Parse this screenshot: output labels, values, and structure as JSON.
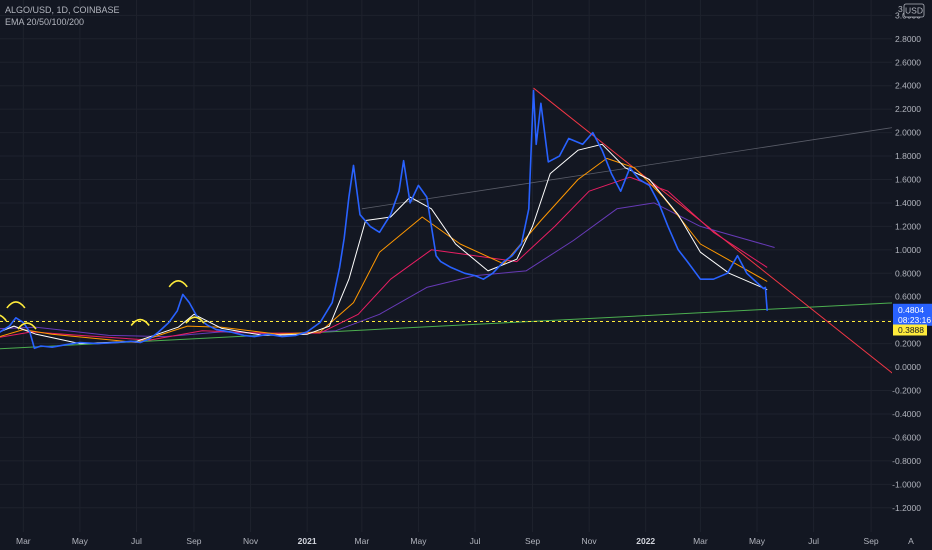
{
  "legend": {
    "symbol_line": "ALGO/USD, 1D, COINBASE",
    "indicator_line": "EMA 20/50/100/200"
  },
  "price_axis": {
    "currency_label": "USD",
    "top_clipped_label": "3."
  },
  "colors": {
    "background": "#131722",
    "price_line": "#2962ff",
    "ema20": "#ffffff",
    "ema50": "#ff9800",
    "ema100": "#e91e63",
    "ema200": "#673ab7",
    "support_line": "#4caf50",
    "resistance_line": "#f23645",
    "upper_trendline": "#787b86",
    "highlight_arcs": "#ffeb3b",
    "level_line": "#ffeb3b"
  },
  "current_price_badge": {
    "value": "0.4804",
    "countdown": "08:23:16",
    "color": "#2962ff"
  },
  "level_badge": {
    "value": "0.3888",
    "color": "#ffeb3b"
  },
  "top_right_icon": "settings-gear-icon",
  "bottom_right_icon": "auto-scale-icon",
  "auto_label": "A",
  "chart_data": {
    "type": "line",
    "title": "ALGO/USD, 1D, COINBASE",
    "ylim": [
      -1.3,
      3.05
    ],
    "y_ticks": [
      "3.0000",
      "2.8000",
      "2.6000",
      "2.4000",
      "2.2000",
      "2.0000",
      "1.8000",
      "1.6000",
      "1.4000",
      "1.2000",
      "1.0000",
      "0.8000",
      "0.6000",
      "0.4000",
      "0.2000",
      "0.0000",
      "-0.2000",
      "-0.4000",
      "-0.6000",
      "-0.8000",
      "-1.0000",
      "-1.2000"
    ],
    "y_tick_values": [
      3.0,
      2.8,
      2.6,
      2.4,
      2.2,
      2.0,
      1.8,
      1.6,
      1.4,
      1.2,
      1.0,
      0.8,
      0.6,
      0.4,
      0.2,
      0.0,
      -0.2,
      -0.4,
      -0.6,
      -0.8,
      -1.0,
      -1.2
    ],
    "xlim": [
      "2020-01-10",
      "2022-09-30"
    ],
    "x_ticks": [
      {
        "label": "Mar",
        "date": "2020-03-01",
        "year": false
      },
      {
        "label": "May",
        "date": "2020-05-01",
        "year": false
      },
      {
        "label": "Jul",
        "date": "2020-07-01",
        "year": false
      },
      {
        "label": "Sep",
        "date": "2020-09-01",
        "year": false
      },
      {
        "label": "Nov",
        "date": "2020-11-01",
        "year": false
      },
      {
        "label": "2021",
        "date": "2021-01-01",
        "year": true
      },
      {
        "label": "Mar",
        "date": "2021-03-01",
        "year": false
      },
      {
        "label": "May",
        "date": "2021-05-01",
        "year": false
      },
      {
        "label": "Jul",
        "date": "2021-07-01",
        "year": false
      },
      {
        "label": "Sep",
        "date": "2021-09-01",
        "year": false
      },
      {
        "label": "Nov",
        "date": "2021-11-01",
        "year": false
      },
      {
        "label": "2022",
        "date": "2022-01-01",
        "year": true
      },
      {
        "label": "Mar",
        "date": "2022-03-01",
        "year": false
      },
      {
        "label": "May",
        "date": "2022-05-01",
        "year": false
      },
      {
        "label": "Jul",
        "date": "2022-07-01",
        "year": false
      },
      {
        "label": "Sep",
        "date": "2022-09-01",
        "year": false
      }
    ],
    "series": [
      {
        "key": "price",
        "x": [
          "2020-01-10",
          "2020-01-25",
          "2020-02-05",
          "2020-02-15",
          "2020-02-22",
          "2020-03-01",
          "2020-03-08",
          "2020-03-13",
          "2020-03-20",
          "2020-04-01",
          "2020-04-15",
          "2020-05-01",
          "2020-05-20",
          "2020-06-10",
          "2020-06-25",
          "2020-07-05",
          "2020-07-15",
          "2020-07-25",
          "2020-08-05",
          "2020-08-14",
          "2020-08-20",
          "2020-08-27",
          "2020-09-05",
          "2020-09-15",
          "2020-09-25",
          "2020-10-10",
          "2020-10-25",
          "2020-11-05",
          "2020-11-20",
          "2020-12-05",
          "2020-12-20",
          "2021-01-01",
          "2021-01-15",
          "2021-01-28",
          "2021-02-05",
          "2021-02-10",
          "2021-02-15",
          "2021-02-20",
          "2021-02-27",
          "2021-03-10",
          "2021-03-20",
          "2021-04-01",
          "2021-04-10",
          "2021-04-15",
          "2021-04-22",
          "2021-05-01",
          "2021-05-10",
          "2021-05-15",
          "2021-05-20",
          "2021-05-25",
          "2021-06-05",
          "2021-06-20",
          "2021-07-01",
          "2021-07-10",
          "2021-07-20",
          "2021-08-01",
          "2021-08-10",
          "2021-08-20",
          "2021-08-28",
          "2021-09-02",
          "2021-09-05",
          "2021-09-10",
          "2021-09-18",
          "2021-09-30",
          "2021-10-10",
          "2021-10-25",
          "2021-11-05",
          "2021-11-15",
          "2021-11-25",
          "2021-12-05",
          "2021-12-15",
          "2021-12-25",
          "2022-01-05",
          "2022-01-15",
          "2022-01-25",
          "2022-02-05",
          "2022-02-15",
          "2022-03-01",
          "2022-03-15",
          "2022-03-30",
          "2022-04-10",
          "2022-04-20",
          "2022-05-01",
          "2022-05-08",
          "2022-05-10",
          "2022-05-12"
        ],
        "values": [
          0.21,
          0.25,
          0.3,
          0.35,
          0.42,
          0.38,
          0.3,
          0.16,
          0.18,
          0.17,
          0.19,
          0.21,
          0.2,
          0.21,
          0.22,
          0.21,
          0.24,
          0.3,
          0.38,
          0.48,
          0.62,
          0.55,
          0.42,
          0.36,
          0.32,
          0.3,
          0.27,
          0.26,
          0.28,
          0.26,
          0.27,
          0.3,
          0.38,
          0.55,
          0.85,
          1.1,
          1.45,
          1.72,
          1.3,
          1.2,
          1.15,
          1.3,
          1.5,
          1.76,
          1.4,
          1.55,
          1.45,
          1.2,
          0.95,
          0.9,
          0.85,
          0.8,
          0.78,
          0.75,
          0.8,
          0.9,
          0.95,
          1.05,
          1.35,
          2.36,
          1.9,
          2.25,
          1.75,
          1.8,
          1.95,
          1.9,
          2.0,
          1.85,
          1.65,
          1.5,
          1.7,
          1.6,
          1.55,
          1.4,
          1.2,
          1.0,
          0.9,
          0.75,
          0.75,
          0.8,
          0.95,
          0.8,
          0.72,
          0.67,
          0.68,
          0.48
        ]
      },
      {
        "key": "ema20",
        "x": [
          "2020-01-10",
          "2020-02-20",
          "2020-03-15",
          "2020-05-01",
          "2020-07-01",
          "2020-08-15",
          "2020-09-01",
          "2020-10-01",
          "2020-11-15",
          "2021-01-01",
          "2021-01-25",
          "2021-02-15",
          "2021-03-05",
          "2021-04-01",
          "2021-04-22",
          "2021-05-15",
          "2021-06-10",
          "2021-07-15",
          "2021-08-15",
          "2021-09-01",
          "2021-09-20",
          "2021-10-20",
          "2021-11-15",
          "2021-12-10",
          "2022-01-05",
          "2022-02-05",
          "2022-03-01",
          "2022-04-01",
          "2022-05-12"
        ],
        "values": [
          0.22,
          0.35,
          0.28,
          0.2,
          0.22,
          0.34,
          0.45,
          0.33,
          0.27,
          0.28,
          0.35,
          0.75,
          1.25,
          1.28,
          1.45,
          1.35,
          1.05,
          0.82,
          0.92,
          1.2,
          1.65,
          1.85,
          1.9,
          1.7,
          1.6,
          1.3,
          0.98,
          0.8,
          0.66
        ]
      },
      {
        "key": "ema50",
        "x": [
          "2020-01-10",
          "2020-03-01",
          "2020-04-01",
          "2020-07-01",
          "2020-08-25",
          "2020-10-01",
          "2020-12-01",
          "2021-01-15",
          "2021-02-20",
          "2021-03-20",
          "2021-05-05",
          "2021-06-15",
          "2021-08-01",
          "2021-09-10",
          "2021-10-20",
          "2021-11-20",
          "2021-12-20",
          "2022-01-20",
          "2022-03-01",
          "2022-04-15",
          "2022-05-12"
        ],
        "values": [
          0.2,
          0.32,
          0.28,
          0.21,
          0.35,
          0.34,
          0.28,
          0.3,
          0.55,
          0.98,
          1.28,
          1.05,
          0.88,
          1.25,
          1.6,
          1.78,
          1.7,
          1.45,
          1.05,
          0.85,
          0.73
        ]
      },
      {
        "key": "ema100",
        "x": [
          "2020-01-10",
          "2020-03-10",
          "2020-05-01",
          "2020-07-15",
          "2020-09-10",
          "2020-11-15",
          "2021-01-15",
          "2021-02-25",
          "2021-04-01",
          "2021-05-15",
          "2021-07-01",
          "2021-08-15",
          "2021-09-25",
          "2021-11-01",
          "2021-12-15",
          "2022-01-25",
          "2022-03-15",
          "2022-05-12"
        ],
        "values": [
          0.22,
          0.3,
          0.27,
          0.23,
          0.31,
          0.29,
          0.29,
          0.45,
          0.75,
          1.0,
          0.95,
          0.9,
          1.2,
          1.5,
          1.62,
          1.5,
          1.15,
          0.85
        ]
      },
      {
        "key": "ema200",
        "x": [
          "2020-01-10",
          "2020-03-15",
          "2020-06-01",
          "2020-08-01",
          "2020-10-01",
          "2020-12-01",
          "2021-02-01",
          "2021-03-20",
          "2021-05-10",
          "2021-07-01",
          "2021-08-25",
          "2021-10-15",
          "2021-12-01",
          "2022-01-10",
          "2022-03-01",
          "2022-05-20"
        ],
        "values": [
          0.32,
          0.34,
          0.27,
          0.26,
          0.3,
          0.28,
          0.31,
          0.45,
          0.68,
          0.78,
          0.82,
          1.08,
          1.35,
          1.4,
          1.2,
          1.02
        ]
      }
    ],
    "drawings": {
      "support_trendline": {
        "x": [
          "2020-01-20",
          "2022-09-30"
        ],
        "values": [
          0.15,
          0.55
        ]
      },
      "resistance_trendline": {
        "x": [
          "2021-09-02",
          "2022-09-30"
        ],
        "values": [
          2.38,
          -0.09
        ]
      },
      "upper_trendline": {
        "x": [
          "2021-03-01",
          "2022-09-30"
        ],
        "values": [
          1.35,
          2.05
        ]
      },
      "horizontal_level": {
        "value": 0.3888
      },
      "highlight_arcs": [
        {
          "x": "2020-02-02",
          "value": 0.42
        },
        {
          "x": "2020-02-22",
          "value": 0.53
        },
        {
          "x": "2020-03-05",
          "value": 0.35
        },
        {
          "x": "2020-07-05",
          "value": 0.38
        },
        {
          "x": "2020-08-15",
          "value": 0.71
        },
        {
          "x": "2020-09-02",
          "value": 0.4
        }
      ]
    }
  }
}
